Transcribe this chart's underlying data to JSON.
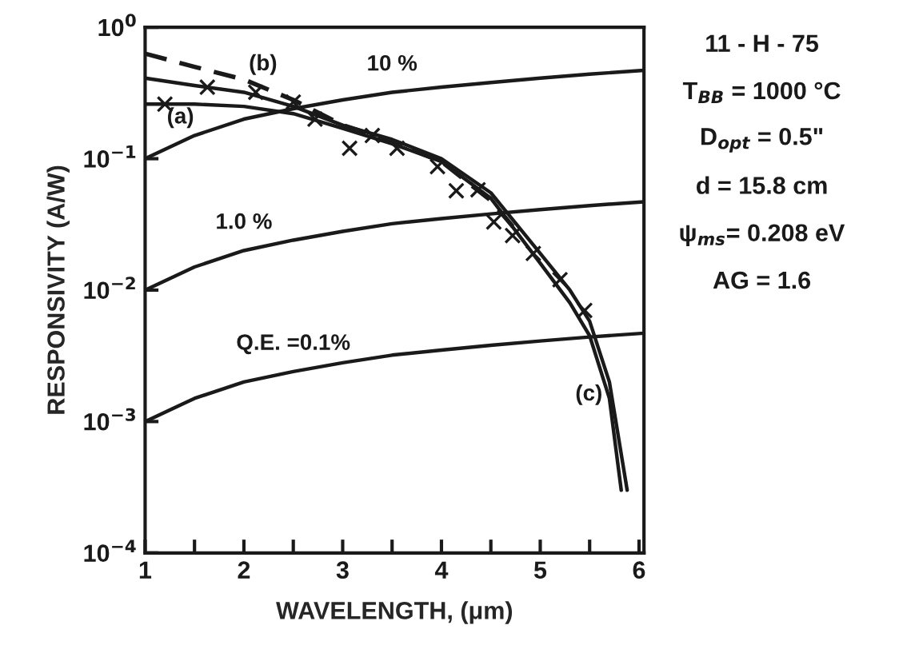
{
  "chart_data": {
    "type": "line",
    "xlabel": "WAVELENGTH, (μm)",
    "ylabel": "RESPONSIVITY (A/W)",
    "log": "y",
    "xlim": [
      1,
      6.05
    ],
    "ylim": [
      0.0001,
      1
    ],
    "xticks": [
      1,
      {
        "value": 1.5,
        "label": null
      },
      2,
      {
        "value": 2.5,
        "label": null
      },
      3,
      {
        "value": 3.5,
        "label": null
      },
      4,
      {
        "value": 4.5,
        "label": null
      },
      5,
      {
        "value": 5.5,
        "label": null
      },
      6
    ],
    "yticks": [
      {
        "value": 0.0001,
        "label": "10$^{−4}$"
      },
      {
        "value": 0.001,
        "label": "10$^{−3}$"
      },
      {
        "value": 0.01,
        "label": "10$^{−2}$"
      },
      {
        "value": 0.1,
        "label": "10$^{−1}$"
      },
      {
        "value": 1,
        "label": "10$^{0}$"
      }
    ],
    "grid": false,
    "legend": false,
    "marker": "none",
    "series": [
      {
        "name": "10 %",
        "color": "#1a1a1a",
        "x": [
          1,
          1.5,
          2,
          2.5,
          3,
          3.5,
          4,
          4.5,
          5,
          5.5,
          6.05
        ],
        "values": [
          0.1,
          0.15,
          0.2,
          0.24,
          0.28,
          0.32,
          0.35,
          0.38,
          0.41,
          0.44,
          0.47
        ]
      },
      {
        "name": "1.0 %",
        "color": "#1a1a1a",
        "x": [
          1,
          1.5,
          2,
          2.5,
          3,
          3.5,
          4,
          4.5,
          5,
          5.5,
          6.05
        ],
        "values": [
          0.01,
          0.015,
          0.02,
          0.024,
          0.028,
          0.032,
          0.035,
          0.038,
          0.041,
          0.044,
          0.047
        ]
      },
      {
        "name": "Q.E. =0.1%",
        "color": "#1a1a1a",
        "x": [
          1,
          1.5,
          2,
          2.5,
          3,
          3.5,
          4,
          4.5,
          5,
          5.5,
          6.05
        ],
        "values": [
          0.001,
          0.0015,
          0.002,
          0.0024,
          0.0028,
          0.0032,
          0.0035,
          0.0038,
          0.0041,
          0.0044,
          0.0047
        ]
      },
      {
        "name": "(a)",
        "color": "#1a1a1a",
        "x": [
          1,
          1.5,
          2,
          2.5,
          3,
          3.5,
          4,
          4.5,
          5,
          5.3,
          5.5,
          5.7,
          5.82
        ],
        "values": [
          0.26,
          0.26,
          0.25,
          0.22,
          0.17,
          0.13,
          0.095,
          0.05,
          0.016,
          0.008,
          0.0045,
          0.0015,
          0.0003
        ]
      },
      {
        "name": "(b)",
        "color": "#1a1a1a",
        "line_style": "dashed",
        "x": [
          1,
          1.5,
          2,
          2.5,
          3,
          3.5,
          4,
          4.5,
          4.8
        ],
        "values": [
          0.63,
          0.5,
          0.4,
          0.28,
          0.18,
          0.135,
          0.095,
          0.048,
          0.026
        ]
      },
      {
        "name": "(c)",
        "color": "#1a1a1a",
        "x": [
          1,
          1.5,
          2,
          2.5,
          3,
          3.5,
          4,
          4.5,
          5,
          5.3,
          5.5,
          5.7,
          5.88
        ],
        "values": [
          0.41,
          0.36,
          0.32,
          0.25,
          0.18,
          0.14,
          0.1,
          0.055,
          0.019,
          0.01,
          0.0058,
          0.002,
          0.0003
        ]
      },
      {
        "type": "scatter",
        "marker": "cross",
        "color": "#1a1a1a",
        "x": [
          1.2,
          1.63,
          2.12,
          2.5,
          2.72,
          3.07,
          3.3,
          3.55,
          3.96,
          4.15,
          4.37,
          4.53,
          4.72,
          4.93,
          5.2,
          5.45
        ],
        "values": [
          0.26,
          0.35,
          0.32,
          0.27,
          0.2,
          0.12,
          0.15,
          0.12,
          0.087,
          0.057,
          0.058,
          0.033,
          0.026,
          0.019,
          0.012,
          0.007
        ]
      }
    ],
    "annotations": [
      "11 - H - 75",
      "T$_{BB}$ = 1000 °C",
      "D$_{opt}$ = 0.5\"",
      "d = 15.8 cm",
      "ψ$_{ms}$= 0.208 eV",
      "AG = 1.6"
    ]
  }
}
